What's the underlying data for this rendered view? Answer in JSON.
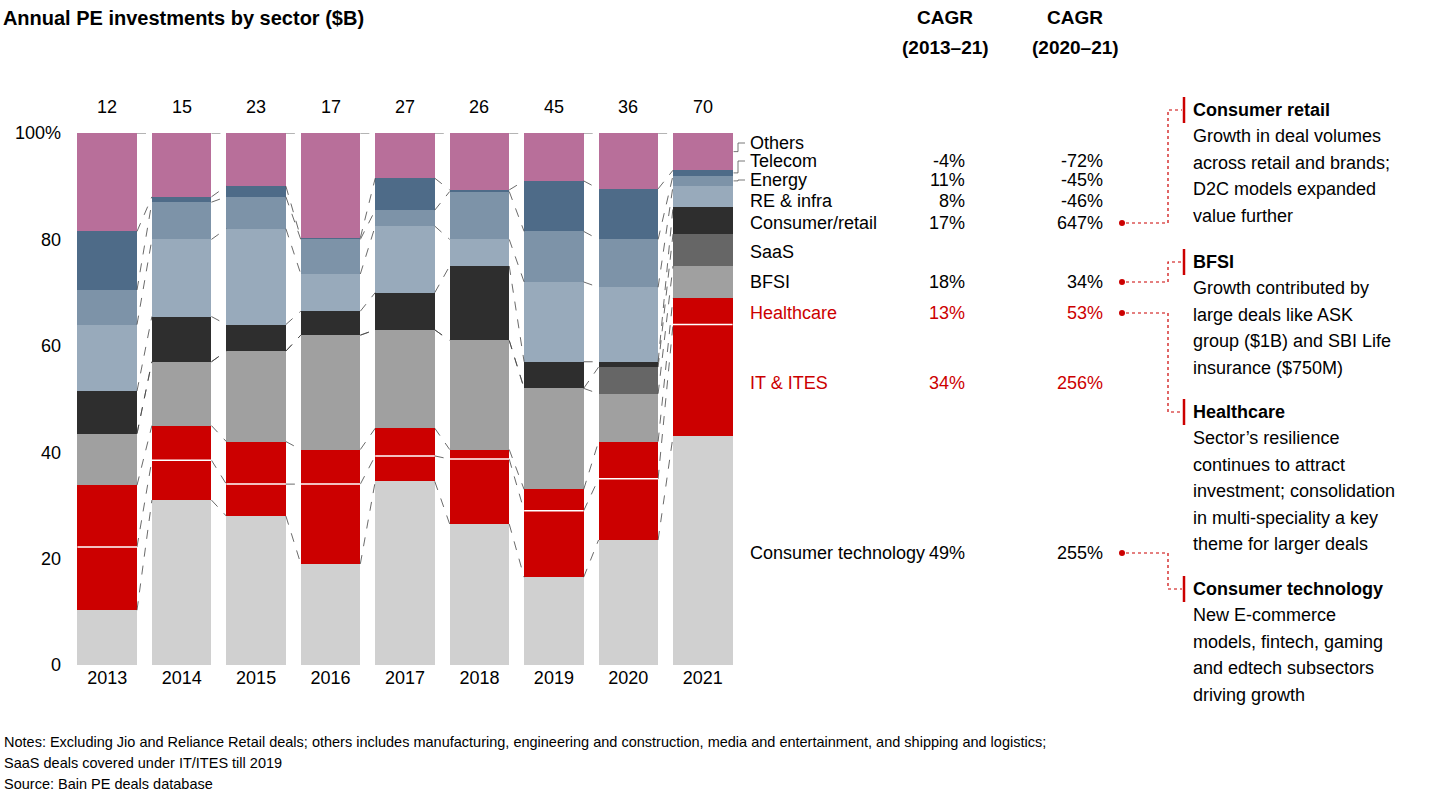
{
  "chart_data": {
    "type": "bar",
    "title": "Annual PE investments by sector ($B)",
    "stacked": true,
    "categories": [
      "2013",
      "2014",
      "2015",
      "2016",
      "2017",
      "2018",
      "2019",
      "2020",
      "2021"
    ],
    "totals": [
      12,
      15,
      23,
      17,
      27,
      26,
      45,
      36,
      70
    ],
    "ylim": [
      0,
      100
    ],
    "yticks": [
      0,
      20,
      40,
      60,
      80,
      {
        "value": 100,
        "label": "100%"
      }
    ],
    "grid": false,
    "cagr_headers": [
      [
        "CAGR",
        "(2013–21)"
      ],
      [
        "CAGR",
        "(2020–21)"
      ]
    ],
    "series": [
      {
        "name": "Consumer technology",
        "color": "#d0d0d0",
        "values": [
          10.3,
          31,
          28,
          19,
          34.5,
          26.5,
          16.5,
          23.5,
          43
        ],
        "cagr_labels": [
          "49%",
          "255%"
        ]
      },
      {
        "name": "IT & ITES",
        "color": "#cc0000",
        "values": [
          11.9,
          7.5,
          6,
          15,
          4.8,
          12.2,
          12.5,
          11.5,
          21
        ],
        "cagr_labels": [
          "34%",
          "256%"
        ]
      },
      {
        "name": "Healthcare",
        "color": "#cc0000",
        "values": [
          11.6,
          6.5,
          8,
          6.5,
          5.2,
          1.8,
          4,
          7,
          5
        ],
        "cagr_labels": [
          "13%",
          "53%"
        ]
      },
      {
        "name": "BFSI",
        "color": "#a0a0a0",
        "values": [
          9.7,
          12,
          17,
          21.5,
          18.5,
          20.5,
          19,
          9,
          6
        ],
        "cagr_labels": [
          "18%",
          "34%"
        ]
      },
      {
        "name": "SaaS",
        "color": "#666666",
        "values": [
          null,
          null,
          null,
          null,
          null,
          null,
          null,
          5,
          6
        ]
      },
      {
        "name": "Consumer/retail",
        "color": "#2e2e2e",
        "values": [
          8,
          8.5,
          5,
          4.5,
          7,
          14,
          5,
          1,
          5
        ],
        "cagr_labels": [
          "17%",
          "647%"
        ]
      },
      {
        "name": "RE & infra",
        "color": "#98aabb",
        "values": [
          12.5,
          14.5,
          18,
          7,
          12.5,
          5,
          15,
          14,
          4
        ],
        "cagr_labels": [
          "8%",
          "-46%"
        ]
      },
      {
        "name": "Energy",
        "color": "#7d93a8",
        "values": [
          6.5,
          7,
          6,
          6.5,
          3,
          9,
          9.5,
          9,
          2
        ],
        "cagr_labels": [
          "11%",
          "-45%"
        ]
      },
      {
        "name": "Telecom",
        "color": "#4e6b88",
        "values": [
          11,
          1,
          2,
          0.3,
          6,
          0.3,
          9.5,
          9.5,
          1
        ],
        "cagr_labels": [
          "-4%",
          "-72%"
        ]
      },
      {
        "name": "Others",
        "color": "#b86f9a",
        "values": [
          18.5,
          12,
          10,
          19.7,
          8.5,
          10.7,
          9,
          10.5,
          7
        ]
      }
    ],
    "callouts": [
      {
        "series": "Consumer/retail",
        "title": "Consumer retail",
        "lines": [
          "Growth in deal volumes",
          "across retail and brands;",
          "D2C models expanded",
          "value further"
        ]
      },
      {
        "series": "BFSI",
        "title": "BFSI",
        "lines": [
          "Growth contributed by",
          "large deals like ASK",
          "group ($1B) and SBI Life",
          "insurance ($750M)"
        ]
      },
      {
        "series": "Healthcare",
        "title": "Healthcare",
        "lines": [
          "Sector’s resilience",
          "continues to attract",
          "investment; consolidation",
          "in multi-speciality a key",
          "theme for larger deals"
        ]
      },
      {
        "series": "Consumer technology",
        "title": "Consumer technology",
        "lines": [
          "New E-commerce",
          "models, fintech, gaming",
          "and edtech subsectors",
          "driving growth"
        ]
      }
    ],
    "notes": [
      "Notes: Excluding Jio and Reliance Retail deals; others includes manufacturing, engineering and construction, media and entertainment, and shipping and logistics;",
      "SaaS deals covered under IT/ITES till 2019",
      "Source: Bain PE deals database"
    ]
  }
}
